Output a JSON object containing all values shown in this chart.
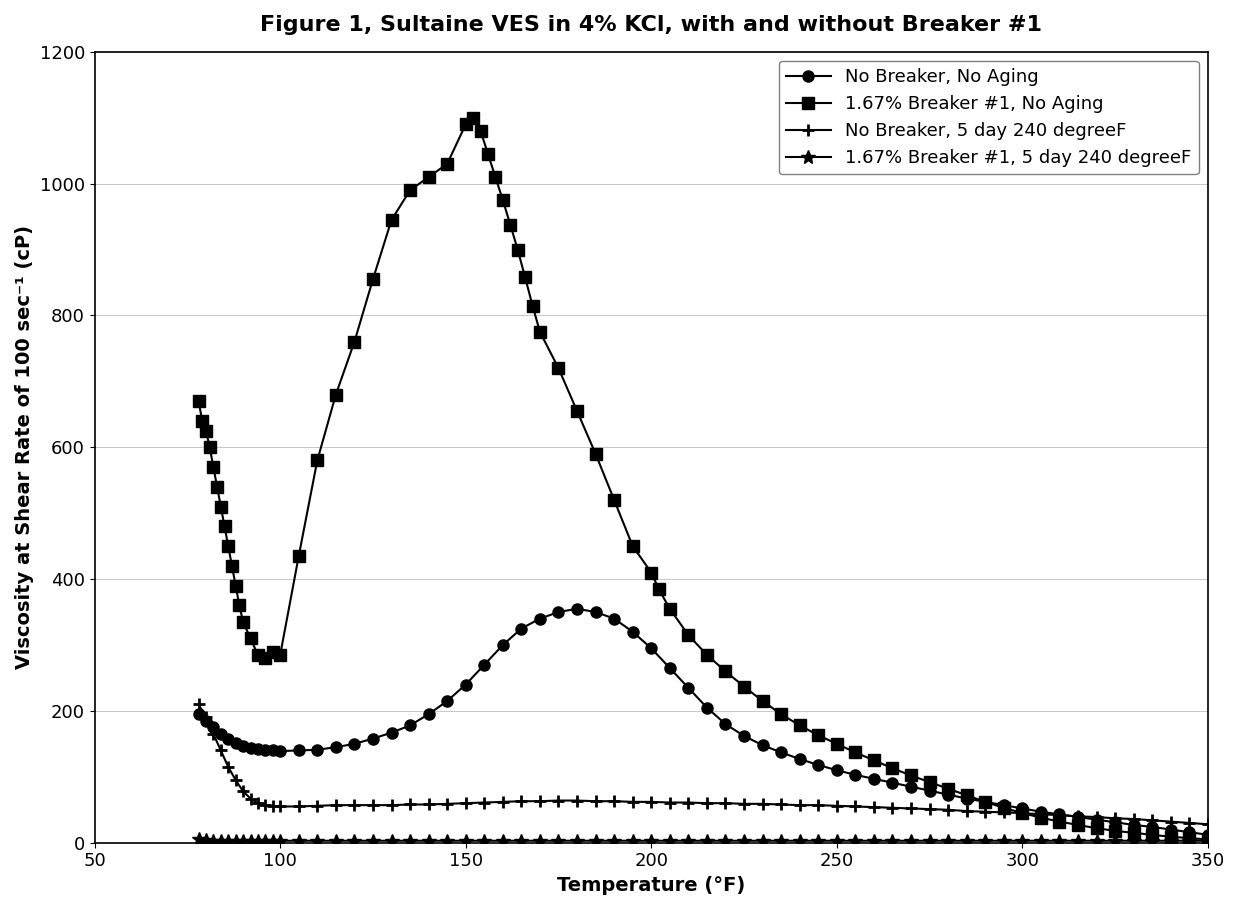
{
  "title": "Figure 1, Sultaine VES in 4% KCl, with and without Breaker #1",
  "xlabel": "Temperature (°F)",
  "ylabel": "Viscosity at Shear Rate of 100 sec⁻¹ (cP)",
  "xlim": [
    50,
    350
  ],
  "ylim": [
    0,
    1200
  ],
  "xticks": [
    50,
    100,
    150,
    200,
    250,
    300,
    350
  ],
  "yticks": [
    0,
    200,
    400,
    600,
    800,
    1000,
    1200
  ],
  "series": {
    "no_breaker_no_aging": {
      "label": "No Breaker, No Aging",
      "marker": "o",
      "markersize": 8,
      "linewidth": 1.5,
      "color": "#000000",
      "x": [
        78,
        80,
        82,
        84,
        86,
        88,
        90,
        92,
        94,
        96,
        98,
        100,
        105,
        110,
        115,
        120,
        125,
        130,
        135,
        140,
        145,
        150,
        155,
        160,
        165,
        170,
        175,
        180,
        185,
        190,
        195,
        200,
        205,
        210,
        215,
        220,
        225,
        230,
        235,
        240,
        245,
        250,
        255,
        260,
        265,
        270,
        275,
        280,
        285,
        290,
        295,
        300,
        305,
        310,
        315,
        320,
        325,
        330,
        335,
        340,
        345,
        350
      ],
      "y": [
        195,
        185,
        175,
        165,
        158,
        152,
        147,
        144,
        142,
        141,
        140,
        139,
        140,
        141,
        145,
        150,
        158,
        167,
        178,
        195,
        215,
        240,
        270,
        300,
        325,
        340,
        350,
        355,
        350,
        340,
        320,
        295,
        265,
        235,
        205,
        180,
        162,
        148,
        137,
        127,
        118,
        110,
        103,
        97,
        91,
        85,
        79,
        73,
        67,
        62,
        57,
        52,
        47,
        43,
        39,
        35,
        31,
        27,
        24,
        20,
        16,
        12
      ]
    },
    "breaker_no_aging": {
      "label": "1.67% Breaker #1, No Aging",
      "marker": "s",
      "markersize": 8,
      "linewidth": 1.5,
      "color": "#000000",
      "x": [
        78,
        79,
        80,
        81,
        82,
        83,
        84,
        85,
        86,
        87,
        88,
        89,
        90,
        92,
        94,
        96,
        98,
        100,
        105,
        110,
        115,
        120,
        125,
        130,
        135,
        140,
        145,
        150,
        152,
        154,
        156,
        158,
        160,
        162,
        164,
        166,
        168,
        170,
        175,
        180,
        185,
        190,
        195,
        200,
        202,
        205,
        210,
        215,
        220,
        225,
        230,
        235,
        240,
        245,
        250,
        255,
        260,
        265,
        270,
        275,
        280,
        285,
        290,
        295,
        300,
        305,
        310,
        315,
        320,
        325,
        330,
        335,
        340,
        345,
        350
      ],
      "y": [
        670,
        640,
        625,
        600,
        570,
        540,
        510,
        480,
        450,
        420,
        390,
        360,
        335,
        310,
        285,
        280,
        290,
        285,
        435,
        580,
        680,
        760,
        855,
        945,
        990,
        1010,
        1030,
        1090,
        1100,
        1080,
        1045,
        1010,
        975,
        938,
        900,
        858,
        815,
        775,
        720,
        655,
        590,
        520,
        450,
        410,
        385,
        355,
        315,
        285,
        260,
        237,
        215,
        195,
        178,
        163,
        150,
        137,
        125,
        113,
        102,
        92,
        82,
        72,
        62,
        53,
        45,
        38,
        32,
        27,
        22,
        18,
        15,
        12,
        9,
        7,
        5
      ]
    },
    "no_breaker_aged": {
      "label": "No Breaker, 5 day 240 degreeF",
      "marker": "+",
      "markersize": 9,
      "markeredgewidth": 2,
      "linewidth": 1.5,
      "color": "#000000",
      "x": [
        78,
        80,
        82,
        84,
        86,
        88,
        90,
        92,
        94,
        96,
        98,
        100,
        105,
        110,
        115,
        120,
        125,
        130,
        135,
        140,
        145,
        150,
        155,
        160,
        165,
        170,
        175,
        180,
        185,
        190,
        195,
        200,
        205,
        210,
        215,
        220,
        225,
        230,
        235,
        240,
        245,
        250,
        255,
        260,
        265,
        270,
        275,
        280,
        285,
        290,
        295,
        300,
        305,
        310,
        315,
        320,
        325,
        330,
        335,
        340,
        345,
        350
      ],
      "y": [
        210,
        190,
        165,
        140,
        115,
        95,
        78,
        67,
        60,
        57,
        56,
        55,
        55,
        56,
        57,
        57,
        57,
        57,
        58,
        58,
        59,
        60,
        61,
        62,
        63,
        63,
        64,
        64,
        63,
        63,
        62,
        62,
        61,
        61,
        60,
        60,
        59,
        59,
        58,
        57,
        57,
        56,
        55,
        54,
        53,
        52,
        51,
        50,
        48,
        47,
        46,
        45,
        43,
        42,
        40,
        39,
        37,
        36,
        34,
        32,
        30,
        28
      ]
    },
    "breaker_aged": {
      "label": "1.67% Breaker #1, 5 day 240 degreeF",
      "marker": "*",
      "markersize": 10,
      "linewidth": 1.5,
      "color": "#000000",
      "x": [
        78,
        80,
        82,
        84,
        86,
        88,
        90,
        92,
        94,
        96,
        98,
        100,
        105,
        110,
        115,
        120,
        125,
        130,
        135,
        140,
        145,
        150,
        155,
        160,
        165,
        170,
        175,
        180,
        185,
        190,
        195,
        200,
        205,
        210,
        215,
        220,
        225,
        230,
        235,
        240,
        245,
        250,
        255,
        260,
        265,
        270,
        275,
        280,
        285,
        290,
        295,
        300,
        305,
        310,
        315,
        320,
        325,
        330,
        335,
        340,
        345,
        350
      ],
      "y": [
        5,
        4,
        3,
        3,
        3,
        3,
        3,
        3,
        3,
        3,
        3,
        3,
        3,
        3,
        3,
        3,
        3,
        3,
        3,
        3,
        3,
        3,
        3,
        3,
        3,
        3,
        3,
        3,
        3,
        3,
        3,
        3,
        3,
        3,
        3,
        3,
        3,
        3,
        3,
        3,
        3,
        3,
        3,
        3,
        3,
        3,
        3,
        3,
        3,
        3,
        3,
        3,
        3,
        3,
        3,
        3,
        3,
        3,
        3,
        3,
        3,
        3
      ]
    }
  },
  "legend_loc": "upper right",
  "title_fontsize": 16,
  "label_fontsize": 14,
  "tick_fontsize": 13,
  "legend_fontsize": 13
}
